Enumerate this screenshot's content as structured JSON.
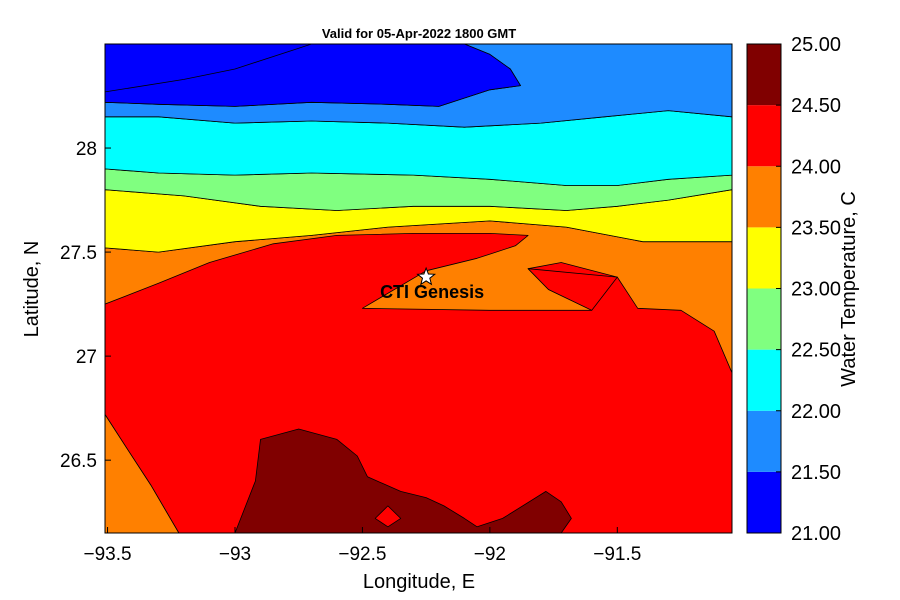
{
  "chart_data": {
    "type": "contour",
    "title": "Valid for 05-Apr-2022 1800 GMT",
    "xlabel": "Longitude, E",
    "ylabel": "Latitude, N",
    "colorbar_label": "Water Temperature, C",
    "xlim": [
      -93.51,
      -91.05
    ],
    "ylim": [
      26.15,
      28.5
    ],
    "x_ticks": [
      -93.5,
      -93,
      -92.5,
      -92,
      -91.5
    ],
    "x_tick_labels": [
      "−93.5",
      "−93",
      "−92.5",
      "−92",
      "−91.5"
    ],
    "y_ticks": [
      26.5,
      27,
      27.5,
      28
    ],
    "y_tick_labels": [
      "26.5",
      "27",
      "27.5",
      "28"
    ],
    "levels": [
      21.0,
      21.5,
      22.0,
      22.5,
      23.0,
      23.5,
      24.0,
      24.5,
      25.0
    ],
    "level_labels": [
      "21.00",
      "21.50",
      "22.00",
      "22.50",
      "23.00",
      "23.50",
      "24.00",
      "24.50",
      "25.00"
    ],
    "level_colors": [
      "#0000ff",
      "#1e8bff",
      "#00ffff",
      "#80ff80",
      "#ffff00",
      "#ff8000",
      "#ff0000",
      "#800000"
    ],
    "grid": false,
    "regions": [
      {
        "range": [
          23.5,
          24.0
        ],
        "color": "#ff8000",
        "points": [
          [
            -93.51,
            27.52
          ],
          [
            -93.3,
            27.5
          ],
          [
            -93.0,
            27.55
          ],
          [
            -92.7,
            27.58
          ],
          [
            -92.4,
            27.62
          ],
          [
            -92.0,
            27.65
          ],
          [
            -91.7,
            27.62
          ],
          [
            -91.4,
            27.55
          ],
          [
            -91.05,
            27.55
          ],
          [
            -91.05,
            26.15
          ],
          [
            -93.51,
            26.15
          ]
        ]
      },
      {
        "range": [
          23.5,
          24.0
        ],
        "color": "#ff8000",
        "points": [
          [
            -93.51,
            26.72
          ],
          [
            -93.42,
            26.55
          ],
          [
            -93.33,
            26.38
          ],
          [
            -93.22,
            26.15
          ],
          [
            -93.51,
            26.15
          ]
        ]
      },
      {
        "range": [
          24.0,
          24.5
        ],
        "color": "#ff0000",
        "points": [
          [
            -93.51,
            27.25
          ],
          [
            -93.3,
            27.35
          ],
          [
            -93.1,
            27.45
          ],
          [
            -92.85,
            27.54
          ],
          [
            -92.6,
            27.58
          ],
          [
            -92.3,
            27.59
          ],
          [
            -92.0,
            27.59
          ],
          [
            -91.85,
            27.58
          ],
          [
            -91.9,
            27.53
          ],
          [
            -92.05,
            27.47
          ],
          [
            -92.25,
            27.41
          ],
          [
            -92.5,
            27.23
          ],
          [
            -92.0,
            27.22
          ],
          [
            -91.6,
            27.22
          ],
          [
            -91.77,
            27.32
          ],
          [
            -91.85,
            27.42
          ],
          [
            -91.72,
            27.45
          ],
          [
            -91.5,
            27.38
          ],
          [
            -91.42,
            27.23
          ],
          [
            -91.25,
            27.22
          ],
          [
            -91.12,
            27.12
          ],
          [
            -91.05,
            26.92
          ],
          [
            -91.05,
            26.15
          ],
          [
            -93.22,
            26.15
          ],
          [
            -93.33,
            26.38
          ],
          [
            -93.42,
            26.55
          ],
          [
            -93.51,
            26.72
          ]
        ]
      },
      {
        "range": [
          24.0,
          24.5
        ],
        "color": "#ff0000",
        "points": [
          [
            -91.85,
            27.42
          ],
          [
            -91.77,
            27.32
          ],
          [
            -91.6,
            27.22
          ],
          [
            -91.5,
            27.38
          ]
        ]
      },
      {
        "range": [
          24.5,
          25.0
        ],
        "color": "#800000",
        "points": [
          [
            -93.0,
            26.15
          ],
          [
            -92.92,
            26.4
          ],
          [
            -92.9,
            26.6
          ],
          [
            -92.75,
            26.65
          ],
          [
            -92.6,
            26.6
          ],
          [
            -92.52,
            26.52
          ],
          [
            -92.48,
            26.42
          ],
          [
            -92.35,
            26.35
          ],
          [
            -92.25,
            26.32
          ],
          [
            -92.18,
            26.28
          ],
          [
            -92.1,
            26.22
          ],
          [
            -92.05,
            26.18
          ],
          [
            -91.95,
            26.22
          ],
          [
            -91.78,
            26.35
          ],
          [
            -91.72,
            26.3
          ],
          [
            -91.68,
            26.22
          ],
          [
            -91.72,
            26.15
          ]
        ]
      },
      {
        "range": [
          24.0,
          24.5
        ],
        "color": "#ff0000",
        "points": [
          [
            -92.45,
            26.22
          ],
          [
            -92.4,
            26.28
          ],
          [
            -92.35,
            26.22
          ],
          [
            -92.4,
            26.18
          ]
        ]
      },
      {
        "range": [
          23.0,
          23.5
        ],
        "color": "#ffff00",
        "points": [
          [
            -93.51,
            27.52
          ],
          [
            -93.3,
            27.5
          ],
          [
            -93.0,
            27.55
          ],
          [
            -92.7,
            27.58
          ],
          [
            -92.4,
            27.62
          ],
          [
            -92.0,
            27.65
          ],
          [
            -91.7,
            27.62
          ],
          [
            -91.4,
            27.55
          ],
          [
            -91.05,
            27.55
          ],
          [
            -91.05,
            27.8
          ],
          [
            -91.3,
            27.75
          ],
          [
            -91.5,
            27.72
          ],
          [
            -91.7,
            27.7
          ],
          [
            -92.0,
            27.72
          ],
          [
            -92.3,
            27.72
          ],
          [
            -92.6,
            27.7
          ],
          [
            -92.9,
            27.72
          ],
          [
            -93.2,
            27.77
          ],
          [
            -93.51,
            27.8
          ]
        ]
      },
      {
        "range": [
          22.5,
          23.0
        ],
        "color": "#80ff80",
        "points": [
          [
            -93.51,
            27.8
          ],
          [
            -93.2,
            27.77
          ],
          [
            -92.9,
            27.72
          ],
          [
            -92.6,
            27.7
          ],
          [
            -92.3,
            27.72
          ],
          [
            -92.0,
            27.72
          ],
          [
            -91.7,
            27.7
          ],
          [
            -91.5,
            27.72
          ],
          [
            -91.3,
            27.75
          ],
          [
            -91.05,
            27.8
          ],
          [
            -91.05,
            27.87
          ],
          [
            -91.3,
            27.85
          ],
          [
            -91.5,
            27.82
          ],
          [
            -91.7,
            27.82
          ],
          [
            -92.0,
            27.85
          ],
          [
            -92.3,
            27.87
          ],
          [
            -92.7,
            27.88
          ],
          [
            -93.0,
            27.87
          ],
          [
            -93.3,
            27.88
          ],
          [
            -93.51,
            27.9
          ]
        ]
      },
      {
        "range": [
          22.0,
          22.5
        ],
        "color": "#00ffff",
        "points": [
          [
            -93.51,
            27.9
          ],
          [
            -93.3,
            27.88
          ],
          [
            -93.0,
            27.87
          ],
          [
            -92.7,
            27.88
          ],
          [
            -92.3,
            27.87
          ],
          [
            -92.0,
            27.85
          ],
          [
            -91.7,
            27.82
          ],
          [
            -91.5,
            27.82
          ],
          [
            -91.3,
            27.85
          ],
          [
            -91.05,
            27.87
          ],
          [
            -91.05,
            28.15
          ],
          [
            -91.3,
            28.18
          ],
          [
            -91.55,
            28.15
          ],
          [
            -91.8,
            28.12
          ],
          [
            -92.1,
            28.1
          ],
          [
            -92.4,
            28.12
          ],
          [
            -92.7,
            28.13
          ],
          [
            -93.0,
            28.12
          ],
          [
            -93.3,
            28.15
          ],
          [
            -93.51,
            28.15
          ]
        ]
      },
      {
        "range": [
          21.5,
          22.0
        ],
        "color": "#1e8bff",
        "points": [
          [
            -93.51,
            28.15
          ],
          [
            -93.3,
            28.15
          ],
          [
            -93.0,
            28.12
          ],
          [
            -92.7,
            28.13
          ],
          [
            -92.4,
            28.12
          ],
          [
            -92.1,
            28.1
          ],
          [
            -91.8,
            28.12
          ],
          [
            -91.55,
            28.15
          ],
          [
            -91.3,
            28.18
          ],
          [
            -91.05,
            28.15
          ],
          [
            -91.05,
            28.5
          ],
          [
            -92.1,
            28.5
          ],
          [
            -92.0,
            28.45
          ],
          [
            -91.92,
            28.38
          ],
          [
            -91.88,
            28.3
          ],
          [
            -92.0,
            28.28
          ],
          [
            -92.2,
            28.2
          ],
          [
            -92.4,
            28.21
          ],
          [
            -92.7,
            28.22
          ],
          [
            -93.0,
            28.2
          ],
          [
            -93.3,
            28.21
          ],
          [
            -93.51,
            28.22
          ]
        ]
      },
      {
        "range": [
          21.0,
          21.5
        ],
        "color": "#0000ff",
        "points": [
          [
            -93.51,
            28.22
          ],
          [
            -93.3,
            28.21
          ],
          [
            -93.0,
            28.2
          ],
          [
            -92.7,
            28.22
          ],
          [
            -92.4,
            28.21
          ],
          [
            -92.2,
            28.2
          ],
          [
            -92.0,
            28.28
          ],
          [
            -91.88,
            28.3
          ],
          [
            -91.92,
            28.38
          ],
          [
            -92.0,
            28.45
          ],
          [
            -92.1,
            28.5
          ],
          [
            -93.51,
            28.5
          ]
        ]
      }
    ],
    "contour_lines": [
      [
        [
          -93.51,
          28.27
        ],
        [
          -93.2,
          28.33
        ],
        [
          -93.0,
          28.38
        ],
        [
          -92.75,
          28.48
        ],
        [
          -92.7,
          28.5
        ]
      ]
    ],
    "annotations": [
      {
        "text": "CTI Genesis",
        "marker": "star",
        "lon": -92.25,
        "lat": 27.38
      }
    ]
  }
}
